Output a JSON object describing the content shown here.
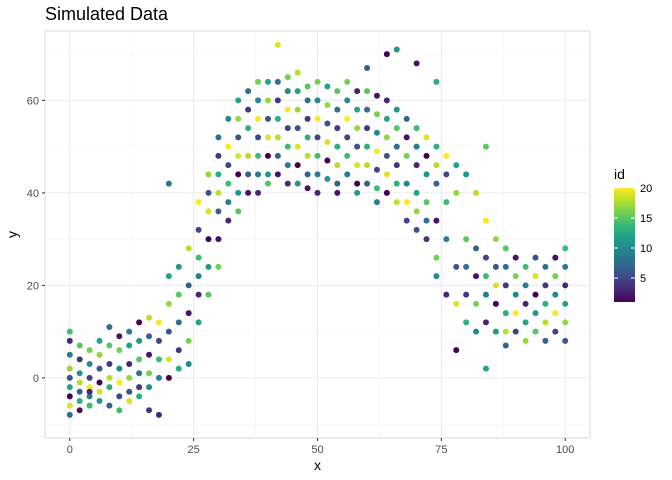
{
  "chart_data": {
    "type": "scatter",
    "title": "Simulated Data",
    "xlabel": "x",
    "ylabel": "y",
    "xlim": [
      -5,
      105
    ],
    "ylim": [
      -13,
      75
    ],
    "xticks": [
      0,
      25,
      50,
      75,
      100
    ],
    "yticks": [
      0,
      20,
      40,
      60
    ],
    "grid": true,
    "legend": {
      "title": "id",
      "placement": "right",
      "type": "colorbar",
      "range": [
        1,
        20
      ],
      "ticks": [
        5,
        10,
        15,
        20
      ],
      "colors": [
        "#440154",
        "#482878",
        "#3e4a89",
        "#31688e",
        "#26828e",
        "#1f9e89",
        "#35b779",
        "#6ece58",
        "#b5de2b",
        "#fde725"
      ]
    },
    "x": [
      0,
      0,
      0,
      0,
      0,
      0,
      0,
      0,
      0,
      2,
      2,
      2,
      2,
      2,
      2,
      2,
      4,
      4,
      4,
      4,
      4,
      4,
      4,
      6,
      6,
      6,
      6,
      6,
      6,
      8,
      8,
      8,
      8,
      8,
      8,
      10,
      10,
      10,
      10,
      10,
      10,
      12,
      12,
      12,
      12,
      12,
      12,
      14,
      14,
      14,
      14,
      14,
      14,
      16,
      16,
      16,
      16,
      16,
      18,
      18,
      18,
      18,
      18,
      20,
      20,
      20,
      20,
      20,
      22,
      22,
      22,
      22,
      22,
      24,
      24,
      24,
      24,
      24,
      26,
      26,
      26,
      26,
      26,
      26,
      28,
      28,
      28,
      28,
      28,
      28,
      30,
      30,
      30,
      30,
      30,
      30,
      30,
      32,
      32,
      32,
      32,
      32,
      32,
      34,
      34,
      34,
      34,
      34,
      34,
      34,
      36,
      36,
      36,
      36,
      36,
      36,
      38,
      38,
      38,
      38,
      38,
      38,
      38,
      40,
      40,
      40,
      40,
      40,
      40,
      40,
      42,
      42,
      42,
      42,
      42,
      42,
      44,
      44,
      44,
      44,
      44,
      44,
      44,
      46,
      46,
      46,
      46,
      46,
      46,
      48,
      48,
      48,
      48,
      48,
      48,
      48,
      50,
      50,
      50,
      50,
      50,
      50,
      50,
      52,
      52,
      52,
      52,
      52,
      52,
      54,
      54,
      54,
      54,
      54,
      54,
      54,
      56,
      56,
      56,
      56,
      56,
      56,
      58,
      58,
      58,
      58,
      58,
      58,
      58,
      60,
      60,
      60,
      60,
      60,
      60,
      62,
      62,
      62,
      62,
      62,
      62,
      62,
      64,
      64,
      64,
      64,
      64,
      64,
      66,
      66,
      66,
      66,
      66,
      66,
      68,
      68,
      68,
      68,
      68,
      68,
      70,
      70,
      70,
      70,
      70,
      70,
      72,
      72,
      72,
      72,
      72,
      72,
      74,
      74,
      74,
      74,
      74,
      74,
      76,
      76,
      76,
      76,
      76,
      78,
      78,
      78,
      78,
      78,
      80,
      80,
      80,
      80,
      80,
      82,
      82,
      82,
      82,
      82,
      84,
      84,
      84,
      84,
      84,
      84,
      86,
      86,
      86,
      86,
      86,
      88,
      88,
      88,
      88,
      88,
      88,
      90,
      90,
      90,
      90,
      90,
      92,
      92,
      92,
      92,
      92,
      94,
      94,
      94,
      94,
      94,
      96,
      96,
      96,
      96,
      96,
      98,
      98,
      98,
      98,
      98,
      100,
      100,
      100,
      100,
      100,
      100,
      42,
      64,
      66,
      84,
      20,
      16,
      74,
      46,
      60,
      70
    ],
    "y": [
      10,
      8,
      5,
      2,
      0,
      -2,
      -4,
      -6,
      -8,
      7,
      4,
      1,
      -1,
      -3,
      -5,
      -7,
      6,
      3,
      0,
      -2,
      -4,
      -6,
      -3,
      8,
      5,
      2,
      -1,
      -3,
      -5,
      11,
      7,
      3,
      0,
      -2,
      -6,
      9,
      6,
      2,
      -1,
      -4,
      -7,
      10,
      7,
      3,
      0,
      -3,
      -5,
      12,
      8,
      4,
      1,
      -2,
      -4,
      13,
      9,
      5,
      1,
      -2,
      12,
      8,
      4,
      0,
      -8,
      22,
      16,
      10,
      4,
      0,
      24,
      18,
      12,
      6,
      2,
      28,
      20,
      14,
      8,
      3,
      38,
      32,
      26,
      22,
      18,
      12,
      44,
      40,
      36,
      30,
      24,
      18,
      52,
      48,
      44,
      40,
      36,
      30,
      24,
      56,
      50,
      46,
      42,
      38,
      34,
      60,
      56,
      52,
      48,
      44,
      40,
      36,
      62,
      58,
      54,
      48,
      44,
      40,
      64,
      60,
      56,
      52,
      48,
      44,
      40,
      64,
      60,
      56,
      52,
      48,
      44,
      42,
      64,
      60,
      56,
      52,
      48,
      44,
      65,
      62,
      58,
      54,
      50,
      46,
      42,
      62,
      58,
      54,
      50,
      46,
      42,
      63,
      60,
      56,
      52,
      48,
      44,
      41,
      64,
      60,
      56,
      52,
      48,
      44,
      40,
      63,
      59,
      55,
      51,
      47,
      43,
      62,
      58,
      54,
      50,
      46,
      42,
      40,
      64,
      60,
      56,
      52,
      48,
      44,
      62,
      58,
      54,
      50,
      46,
      42,
      40,
      62,
      58,
      54,
      50,
      46,
      42,
      61,
      57,
      53,
      49,
      45,
      41,
      38,
      60,
      56,
      52,
      48,
      44,
      40,
      58,
      54,
      50,
      46,
      42,
      38,
      56,
      52,
      48,
      42,
      38,
      34,
      54,
      50,
      46,
      40,
      36,
      32,
      52,
      48,
      44,
      38,
      34,
      30,
      50,
      46,
      42,
      34,
      26,
      22,
      48,
      44,
      38,
      30,
      18,
      46,
      40,
      24,
      16,
      6,
      44,
      30,
      24,
      18,
      12,
      40,
      28,
      22,
      16,
      10,
      34,
      26,
      22,
      18,
      12,
      2,
      30,
      24,
      20,
      16,
      10,
      28,
      24,
      20,
      14,
      10,
      7,
      26,
      22,
      18,
      14,
      10,
      24,
      20,
      16,
      12,
      8,
      26,
      22,
      18,
      14,
      10,
      24,
      20,
      16,
      12,
      8,
      26,
      22,
      18,
      14,
      10,
      28,
      24,
      20,
      16,
      12,
      8,
      72,
      70,
      71,
      50,
      42,
      -7,
      64,
      66,
      67,
      68
    ],
    "id": [
      14,
      3,
      9,
      17,
      6,
      12,
      1,
      19,
      8,
      15,
      4,
      11,
      18,
      7,
      13,
      2,
      16,
      10,
      5,
      20,
      9,
      14,
      3,
      12,
      17,
      6,
      1,
      19,
      11,
      8,
      15,
      4,
      18,
      13,
      7,
      2,
      16,
      10,
      20,
      5,
      14,
      9,
      12,
      3,
      17,
      6,
      19,
      1,
      11,
      15,
      8,
      4,
      13,
      18,
      7,
      2,
      16,
      10,
      20,
      5,
      14,
      9,
      3,
      12,
      17,
      6,
      19,
      1,
      11,
      15,
      8,
      4,
      13,
      18,
      7,
      2,
      16,
      10,
      20,
      5,
      14,
      9,
      3,
      12,
      17,
      6,
      19,
      1,
      11,
      15,
      8,
      4,
      13,
      18,
      7,
      2,
      16,
      10,
      20,
      5,
      14,
      9,
      3,
      12,
      17,
      6,
      19,
      1,
      11,
      15,
      8,
      4,
      13,
      18,
      7,
      2,
      16,
      10,
      20,
      5,
      14,
      9,
      3,
      12,
      17,
      6,
      19,
      1,
      11,
      15,
      8,
      4,
      13,
      18,
      7,
      2,
      16,
      10,
      20,
      5,
      14,
      9,
      3,
      12,
      17,
      6,
      19,
      1,
      11,
      15,
      8,
      4,
      13,
      18,
      7,
      2,
      16,
      10,
      20,
      5,
      14,
      9,
      3,
      12,
      17,
      6,
      19,
      1,
      11,
      15,
      8,
      4,
      13,
      18,
      7,
      2,
      16,
      10,
      20,
      5,
      14,
      9,
      3,
      12,
      17,
      6,
      19,
      1,
      11,
      15,
      8,
      4,
      13,
      18,
      7,
      2,
      16,
      10,
      20,
      5,
      14,
      9,
      3,
      12,
      17,
      6,
      19,
      1,
      11,
      15,
      8,
      4,
      13,
      18,
      7,
      2,
      16,
      10,
      20,
      5,
      14,
      9,
      3,
      12,
      17,
      6,
      19,
      1,
      11,
      15,
      8,
      4,
      13,
      18,
      7,
      2,
      16,
      10,
      20,
      5,
      14,
      9,
      3,
      12,
      17,
      6,
      19,
      1,
      11,
      15,
      8,
      4,
      13,
      18,
      7,
      2,
      16,
      10,
      20,
      5,
      14,
      9,
      3,
      12,
      17,
      6,
      19,
      1,
      11,
      15,
      8,
      4,
      13,
      18,
      7,
      2,
      16,
      10,
      20,
      5,
      14,
      9,
      3,
      12,
      17,
      6,
      19,
      1,
      11,
      15,
      8,
      4,
      13,
      18,
      7,
      2,
      16,
      10,
      20,
      5,
      14,
      9,
      3,
      12,
      17,
      6,
      19,
      1,
      11,
      15,
      8,
      4,
      13,
      18,
      7,
      2,
      16,
      10,
      20,
      5,
      14,
      9,
      13,
      16,
      17,
      3,
      12,
      2,
      4,
      10,
      12,
      15
    ]
  }
}
